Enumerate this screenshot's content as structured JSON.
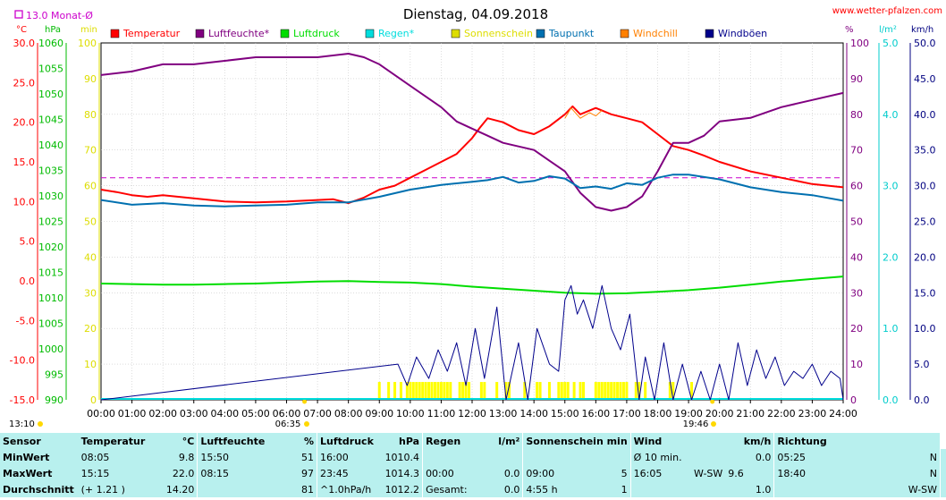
{
  "header": {
    "title": "Dienstag, 04.09.2018",
    "site": "www.wetter-pfalzen.com",
    "monat_label": "13.0 Monat-Ø"
  },
  "axis_units": {
    "temp": "°C",
    "press": "hPa",
    "sun": "min",
    "hum": "%",
    "rain": "l/m²",
    "wind": "km/h"
  },
  "legend": [
    {
      "name": "Temperatur",
      "color": "#ff0000"
    },
    {
      "name": "Luftfeuchte*",
      "color": "#800080"
    },
    {
      "name": "Luftdruck",
      "color": "#00dd00"
    },
    {
      "name": "Regen*",
      "color": "#00dddd"
    },
    {
      "name": "Sonnenschein",
      "color": "#dddd00"
    },
    {
      "name": "Taupunkt",
      "color": "#0070b0"
    },
    {
      "name": "Windchill",
      "color": "#ff8000"
    },
    {
      "name": "Windböen",
      "color": "#00008b"
    }
  ],
  "time_marks": {
    "sunrise": "06:35",
    "sunset": "19:46",
    "left": "13:10"
  },
  "chart_data": {
    "type": "line",
    "title": "Dienstag, 04.09.2018",
    "x_label": "",
    "x_ticks": [
      "00:00",
      "01:00",
      "02:00",
      "03:00",
      "04:00",
      "05:00",
      "06:00",
      "07:00",
      "08:00",
      "09:00",
      "10:00",
      "11:00",
      "12:00",
      "13:00",
      "14:00",
      "15:00",
      "16:00",
      "17:00",
      "18:00",
      "19:00",
      "20:00",
      "21:00",
      "22:00",
      "23:00",
      "24:00"
    ],
    "axes": {
      "temperature": {
        "unit": "°C",
        "range": [
          -15,
          30
        ],
        "ticks": [
          "30.0",
          "25.0",
          "20.0",
          "15.0",
          "10.0",
          "5.0",
          "0.0",
          "-5.0",
          "-10.0",
          "-15.0"
        ]
      },
      "pressure": {
        "unit": "hPa",
        "range": [
          990,
          1060
        ],
        "ticks": [
          "1060",
          "1055",
          "1050",
          "1045",
          "1040",
          "1035",
          "1030",
          "1025",
          "1020",
          "1015",
          "1010",
          "1005",
          "1000",
          "995",
          "990"
        ]
      },
      "sunshine": {
        "unit": "min",
        "range": [
          0,
          100
        ],
        "ticks": [
          "100",
          "90",
          "80",
          "70",
          "60",
          "50",
          "40",
          "30",
          "20",
          "10",
          "0"
        ]
      },
      "humidity": {
        "unit": "%",
        "range": [
          0,
          100
        ],
        "ticks": [
          "100",
          "90",
          "80",
          "70",
          "60",
          "50",
          "40",
          "30",
          "20",
          "10",
          "0"
        ]
      },
      "rain": {
        "unit": "l/m²",
        "range": [
          0,
          5
        ],
        "ticks": [
          "5.0",
          "4.0",
          "3.0",
          "2.0",
          "1.0",
          "0.0"
        ]
      },
      "wind": {
        "unit": "km/h",
        "range": [
          0,
          50
        ],
        "ticks": [
          "50.0",
          "45.0",
          "40.0",
          "35.0",
          "30.0",
          "25.0",
          "20.0",
          "15.0",
          "10.0",
          "5.0",
          "0.0"
        ]
      }
    },
    "monthly_mean_temperature": 13.0,
    "series": [
      {
        "name": "Temperatur",
        "axis": "temperature",
        "color": "#ff0000",
        "x": [
          0,
          0.5,
          1,
          1.5,
          2,
          3,
          4,
          5,
          6,
          7,
          7.5,
          8,
          8.5,
          9,
          9.5,
          10,
          10.5,
          11,
          11.5,
          12,
          12.25,
          12.5,
          13,
          13.5,
          14,
          14.5,
          15,
          15.25,
          15.5,
          16,
          16.5,
          17,
          17.5,
          18,
          18.5,
          19,
          19.5,
          20,
          21,
          22,
          23,
          24
        ],
        "y": [
          11.5,
          11.2,
          10.8,
          10.6,
          10.8,
          10.4,
          10.0,
          9.9,
          10.0,
          10.2,
          10.3,
          9.8,
          10.5,
          11.5,
          12.0,
          13.0,
          14.0,
          15.0,
          16.0,
          18.0,
          19.3,
          20.5,
          20.0,
          19.0,
          18.5,
          19.5,
          21.0,
          22.0,
          21.0,
          21.8,
          21.0,
          20.5,
          20.0,
          18.5,
          17.0,
          16.5,
          15.8,
          15.0,
          13.8,
          13.0,
          12.2,
          11.8
        ]
      },
      {
        "name": "Luftfeuchte*",
        "axis": "humidity",
        "color": "#800080",
        "x": [
          0,
          1,
          2,
          3,
          4,
          5,
          6,
          7,
          8,
          8.5,
          9,
          10,
          11,
          11.5,
          12,
          12.5,
          13,
          13.5,
          14,
          14.5,
          15,
          15.5,
          16,
          16.5,
          17,
          17.5,
          18,
          18.5,
          19,
          19.5,
          20,
          21,
          22,
          23,
          24
        ],
        "y": [
          91,
          92,
          94,
          94,
          95,
          96,
          96,
          96,
          97,
          96,
          94,
          88,
          82,
          78,
          76,
          74,
          72,
          71,
          70,
          67,
          64,
          58,
          54,
          53,
          54,
          57,
          64,
          72,
          72,
          74,
          78,
          79,
          82,
          84,
          86
        ]
      },
      {
        "name": "Luftdruck",
        "axis": "pressure",
        "color": "#00dd00",
        "x": [
          0,
          1,
          2,
          3,
          4,
          5,
          6,
          7,
          8,
          9,
          10,
          11,
          12,
          13,
          14,
          15,
          16,
          17,
          18,
          19,
          20,
          21,
          22,
          23,
          24
        ],
        "y": [
          1012.8,
          1012.7,
          1012.6,
          1012.6,
          1012.7,
          1012.8,
          1013.0,
          1013.2,
          1013.3,
          1013.1,
          1013.0,
          1012.7,
          1012.2,
          1011.8,
          1011.4,
          1011.0,
          1010.8,
          1010.9,
          1011.2,
          1011.5,
          1012.0,
          1012.6,
          1013.2,
          1013.7,
          1014.2
        ]
      },
      {
        "name": "Taupunkt",
        "axis": "temperature",
        "color": "#0070b0",
        "x": [
          0,
          1,
          2,
          3,
          4,
          5,
          6,
          7,
          8,
          9,
          10,
          11,
          12,
          12.5,
          13,
          13.5,
          14,
          14.5,
          15,
          15.5,
          16,
          16.5,
          17,
          17.5,
          18,
          18.5,
          19,
          20,
          21,
          22,
          23,
          24
        ],
        "y": [
          10.2,
          9.6,
          9.8,
          9.5,
          9.4,
          9.5,
          9.6,
          9.9,
          9.9,
          10.6,
          11.5,
          12.1,
          12.5,
          12.7,
          13.1,
          12.4,
          12.6,
          13.2,
          12.9,
          11.7,
          11.9,
          11.6,
          12.3,
          12.1,
          13.0,
          13.4,
          13.4,
          12.8,
          11.8,
          11.2,
          10.8,
          10.1
        ]
      },
      {
        "name": "Windchill",
        "axis": "temperature",
        "color": "#ff8000",
        "x": [
          15.0,
          15.2,
          15.5,
          15.8,
          16.0,
          16.2
        ],
        "y": [
          20.5,
          21.8,
          20.5,
          21.2,
          20.8,
          21.5
        ]
      },
      {
        "name": "Windböen",
        "axis": "wind",
        "color": "#00008b",
        "x": [
          0,
          9.6,
          9.9,
          10.2,
          10.6,
          10.9,
          11.2,
          11.5,
          11.8,
          12.1,
          12.4,
          12.8,
          13.1,
          13.5,
          13.8,
          14.1,
          14.5,
          14.8,
          15.0,
          15.2,
          15.4,
          15.6,
          15.9,
          16.2,
          16.5,
          16.8,
          17.1,
          17.4,
          17.6,
          17.9,
          18.2,
          18.5,
          18.8,
          19.1,
          19.4,
          19.7,
          20.0,
          20.3,
          20.6,
          20.9,
          21.2,
          21.5,
          21.8,
          22.1,
          22.4,
          22.7,
          23.0,
          23.3,
          23.6,
          23.9,
          24
        ],
        "y": [
          0,
          5,
          2,
          6,
          3,
          7,
          4,
          8,
          2,
          10,
          3,
          13,
          0,
          8,
          0,
          10,
          5,
          4,
          14,
          16,
          12,
          14,
          10,
          16,
          10,
          7,
          12,
          0,
          6,
          0,
          8,
          0,
          5,
          0,
          4,
          0,
          5,
          0,
          8,
          2,
          7,
          3,
          6,
          2,
          4,
          3,
          5,
          2,
          4,
          3,
          0
        ]
      }
    ],
    "sunshine_bars": {
      "axis": "sunshine",
      "color": "#ffff00",
      "x": [
        9.0,
        9.3,
        9.5,
        9.7,
        9.9,
        10.0,
        10.1,
        10.2,
        10.3,
        10.4,
        10.5,
        10.6,
        10.7,
        10.8,
        10.9,
        11.0,
        11.1,
        11.2,
        11.3,
        11.6,
        11.7,
        11.8,
        11.9,
        12.3,
        12.4,
        12.8,
        13.1,
        13.2,
        13.7,
        14.1,
        14.2,
        14.5,
        14.8,
        14.9,
        15.0,
        15.1,
        15.3,
        15.5,
        15.6,
        16.0,
        16.1,
        16.2,
        16.3,
        16.4,
        16.5,
        16.6,
        16.7,
        16.8,
        16.9,
        17.0,
        17.3,
        17.4,
        17.6,
        18.4,
        18.5,
        19.1
      ],
      "y": [
        5,
        5,
        5,
        5,
        5,
        5,
        5,
        5,
        5,
        5,
        5,
        5,
        5,
        5,
        5,
        5,
        5,
        5,
        5,
        5,
        5,
        5,
        5,
        5,
        5,
        5,
        5,
        5,
        5,
        5,
        5,
        5,
        5,
        5,
        5,
        5,
        5,
        5,
        5,
        5,
        5,
        5,
        5,
        5,
        5,
        5,
        5,
        5,
        5,
        5,
        5,
        5,
        5,
        5,
        5,
        5
      ]
    },
    "rain_series": {
      "axis": "rain",
      "color": "#00dddd",
      "x": [
        0,
        24
      ],
      "y": [
        0,
        0
      ]
    }
  },
  "summary": {
    "headers": {
      "sensor": "Sensor",
      "temp": "Temperatur",
      "temp_unit": "°C",
      "hum": "Luftfeuchte",
      "hum_unit": "%",
      "press": "Luftdruck",
      "press_unit": "hPa",
      "rain": "Regen",
      "rain_unit": "l/m²",
      "sun": "Sonnenschein min",
      "wind": "Wind",
      "wind_unit": "km/h",
      "dir": "Richtung"
    },
    "rows": [
      {
        "label": "MinWert",
        "temp_time": "08:05",
        "temp_val": "9.8",
        "hum_time": "15:50",
        "hum_val": "51",
        "press_time": "16:00",
        "press_val": "1010.4",
        "rain_time": "",
        "rain_val": "",
        "sun_time": "",
        "sun_val": "",
        "wind_time": "Ø 10 min.",
        "wind_dir": "",
        "wind_val": "0.0",
        "dir_time": "05:25",
        "dir_val": "N"
      },
      {
        "label": "MaxWert",
        "temp_time": "15:15",
        "temp_val": "22.0",
        "hum_time": "08:15",
        "hum_val": "97",
        "press_time": "23:45",
        "press_val": "1014.3",
        "rain_time": "00:00",
        "rain_val": "0.0",
        "sun_time": "09:00",
        "sun_val": "5",
        "wind_time": "16:05",
        "wind_dir": "W-SW",
        "wind_val": "9.6",
        "dir_time": "18:40",
        "dir_val": "N"
      },
      {
        "label": "Durchschnitt",
        "temp_time": "(+ 1.21 )",
        "temp_val": "14.20",
        "hum_time": "",
        "hum_val": "81",
        "press_time": "^1.0hPa/h",
        "press_val": "1012.2",
        "rain_time": "Gesamt:",
        "rain_val": "0.0",
        "sun_time": "4:55 h",
        "sun_val": "1",
        "wind_time": "",
        "wind_dir": "",
        "wind_val": "1.0",
        "dir_time": "",
        "dir_val": "W-SW"
      }
    ]
  }
}
